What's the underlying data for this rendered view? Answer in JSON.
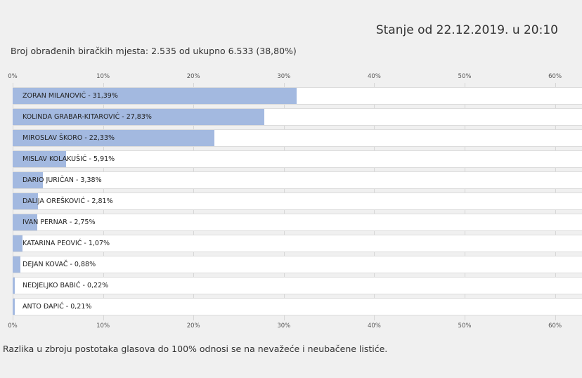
{
  "header": {
    "status": "Stanje od 22.12.2019. u 20:10",
    "counted": "Broj obrađenih biračkih mjesta: 2.535 od ukupno 6.533 (38,80%)"
  },
  "footnote": "Razlika u zbroju postotaka glasova do 100% odnosi se na nevažeće i neubačene listiće.",
  "chart_data": {
    "type": "bar",
    "orientation": "horizontal",
    "categories": [
      "ZORAN MILANOVIĆ - 31,39%",
      "KOLINDA GRABAR-KITAROVIĆ - 27,83%",
      "MIROSLAV ŠKORO - 22,33%",
      "MISLAV KOLAKUŠIĆ - 5,91%",
      "DARIO JURIČAN - 3,38%",
      "DALIJA OREŠKOVIĆ - 2,81%",
      "IVAN PERNAR - 2,75%",
      "KATARINA PEOVIĆ - 1,07%",
      "DEJAN KOVAČ - 0,88%",
      "NEDJELJKO BABIĆ - 0,22%",
      "ANTO ĐAPIĆ - 0,21%"
    ],
    "values": [
      31.39,
      27.83,
      22.33,
      5.91,
      3.38,
      2.81,
      2.75,
      1.07,
      0.88,
      0.22,
      0.21
    ],
    "xlim": [
      0,
      63
    ],
    "ticks": [
      "0%",
      "10%",
      "20%",
      "30%",
      "40%",
      "50%",
      "60%"
    ],
    "tick_values": [
      0,
      10,
      20,
      30,
      40,
      50,
      60
    ],
    "bar_color": "#a3b9e0",
    "grid": true
  }
}
